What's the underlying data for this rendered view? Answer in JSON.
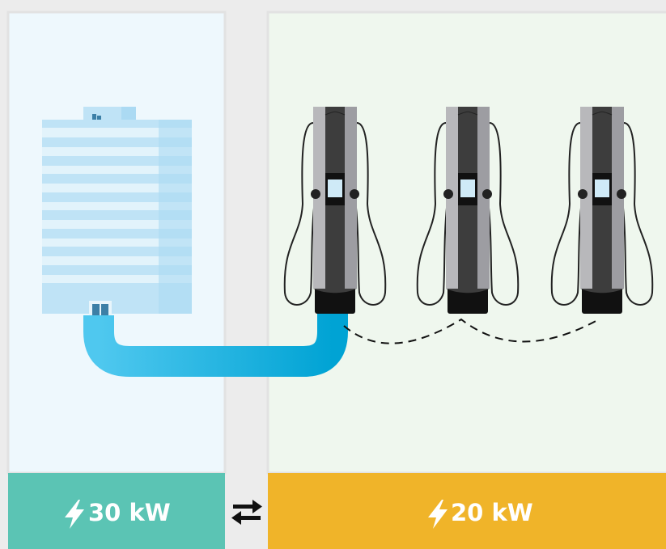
{
  "panels": [
    {
      "power": "30 kW"
    },
    {
      "power": "20 kW"
    }
  ]
}
